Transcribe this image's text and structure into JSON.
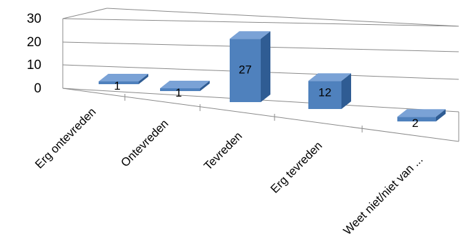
{
  "chart_data": {
    "type": "bar",
    "categories": [
      "Erg ontevreden",
      "Ontevreden",
      "Tevreden",
      "Erg tevreden",
      "Weet niet/niet van ..."
    ],
    "values": [
      1,
      1,
      27,
      12,
      2
    ],
    "data_labels": [
      "1",
      "1",
      "27",
      "12",
      "2"
    ],
    "y_ticks": [
      "0",
      "10",
      "20",
      "30"
    ],
    "ylim": [
      0,
      30
    ],
    "grid": true,
    "style": "3d-column",
    "legend": "none",
    "bar_color": "#4f81bd",
    "bar_side_color": "#2f5c93",
    "bar_top_color": "#7aa2d6"
  }
}
